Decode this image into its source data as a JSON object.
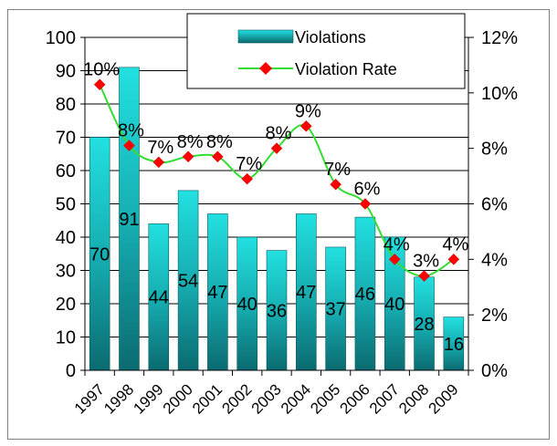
{
  "chart_data": {
    "type": "bar+line",
    "categories": [
      "1997",
      "1998",
      "1999",
      "2000",
      "2001",
      "2002",
      "2003",
      "2004",
      "2005",
      "2006",
      "2007",
      "2008",
      "2009"
    ],
    "series": [
      {
        "name": "Violations",
        "kind": "bar",
        "axis": "left",
        "color": "#19b5b5",
        "values": [
          70,
          91,
          44,
          54,
          47,
          40,
          36,
          47,
          37,
          46,
          40,
          28,
          16
        ],
        "data_labels": [
          "70",
          "91",
          "44",
          "54",
          "47",
          "40",
          "36",
          "47",
          "37",
          "46",
          "40",
          "28",
          "16"
        ]
      },
      {
        "name": "Violation Rate",
        "kind": "line",
        "axis": "right",
        "line_color": "#33dd33",
        "marker_color": "#ff0000",
        "values": [
          0.103,
          0.081,
          0.075,
          0.077,
          0.077,
          0.069,
          0.08,
          0.088,
          0.067,
          0.06,
          0.04,
          0.034,
          0.04
        ],
        "data_labels": [
          "10%",
          "8%",
          "7%",
          "8%",
          "8%",
          "7%",
          "8%",
          "9%",
          "7%",
          "6%",
          "4%",
          "3%",
          "4%"
        ]
      }
    ],
    "y_left": {
      "min": 0,
      "max": 100,
      "ticks": [
        "0",
        "10",
        "20",
        "30",
        "40",
        "50",
        "60",
        "70",
        "80",
        "90",
        "100"
      ]
    },
    "y_right": {
      "min": 0,
      "max": 0.12,
      "ticks": [
        "0%",
        "2%",
        "4%",
        "6%",
        "8%",
        "10%",
        "12%"
      ]
    },
    "grid": true,
    "legend": {
      "placement": "top-right",
      "entries": [
        "Violations",
        "Violation Rate"
      ]
    }
  }
}
